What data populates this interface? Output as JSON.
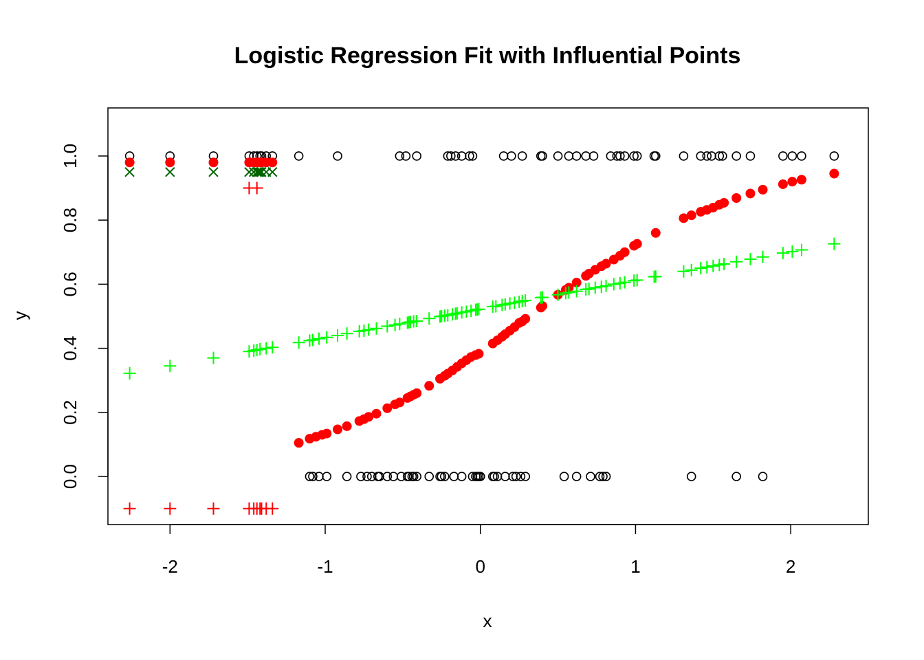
{
  "chart_data": {
    "type": "scatter",
    "title": "Logistic Regression Fit with Influential Points",
    "xlabel": "x",
    "ylabel": "y",
    "xlim": [
      -2.4,
      2.5
    ],
    "ylim": [
      -0.15,
      1.15
    ],
    "x_ticks": [
      -2,
      -1,
      0,
      1,
      2
    ],
    "x_tick_labels": [
      "-2",
      "-1",
      "0",
      "1",
      "2"
    ],
    "y_ticks": [
      0.0,
      0.2,
      0.4,
      0.6,
      0.8,
      1.0
    ],
    "y_tick_labels": [
      "0.0",
      "0.2",
      "0.4",
      "0.6",
      "0.8",
      "1.0"
    ],
    "grid": false,
    "legend": "none",
    "colors": {
      "observed": "#000000",
      "logistic_fit": "#ff0000",
      "linear_fit": "#00ff00",
      "influential_marker": "#006400",
      "influential_offset": "#ff0000"
    },
    "series": [
      {
        "role": "observed",
        "marker": "open-circle",
        "x": [
          -2.26,
          -2.0,
          -1.72,
          -1.49,
          -1.46,
          -1.44,
          -1.42,
          -1.41,
          -1.38,
          -1.34,
          -1.17,
          -0.92,
          -0.52,
          -0.48,
          -0.41,
          -0.21,
          -0.19,
          -0.16,
          -0.12,
          -0.07,
          -0.05,
          0.15,
          0.2,
          0.27,
          0.39,
          0.4,
          0.5,
          0.57,
          0.62,
          0.68,
          0.73,
          0.84,
          0.88,
          0.9,
          0.93,
          0.99,
          1.01,
          1.12,
          1.13,
          1.31,
          1.42,
          1.46,
          1.49,
          1.54,
          1.56,
          1.65,
          1.74,
          1.95,
          2.01,
          2.07,
          2.28,
          -1.1,
          -1.08,
          -1.04,
          -0.99,
          -0.86,
          -0.77,
          -0.73,
          -0.7,
          -0.66,
          -0.65,
          -0.6,
          -0.56,
          -0.51,
          -0.47,
          -0.46,
          -0.44,
          -0.43,
          -0.41,
          -0.33,
          -0.26,
          -0.25,
          -0.23,
          -0.17,
          -0.12,
          -0.05,
          -0.03,
          -0.02,
          -0.01,
          0.0,
          0.08,
          0.09,
          0.11,
          0.16,
          0.21,
          0.23,
          0.26,
          0.29,
          0.54,
          0.62,
          0.71,
          0.77,
          0.79,
          0.81,
          1.36,
          1.65,
          1.82
        ],
        "y": [
          1,
          1,
          1,
          1,
          1,
          1,
          1,
          1,
          1,
          1,
          1,
          1,
          1,
          1,
          1,
          1,
          1,
          1,
          1,
          1,
          1,
          1,
          1,
          1,
          1,
          1,
          1,
          1,
          1,
          1,
          1,
          1,
          1,
          1,
          1,
          1,
          1,
          1,
          1,
          1,
          1,
          1,
          1,
          1,
          1,
          1,
          1,
          1,
          1,
          1,
          1,
          0,
          0,
          0,
          0,
          0,
          0,
          0,
          0,
          0,
          0,
          0,
          0,
          0,
          0,
          0,
          0,
          0,
          0,
          0,
          0,
          0,
          0,
          0,
          0,
          0,
          0,
          0,
          0,
          0,
          0,
          0,
          0,
          0,
          0,
          0,
          0,
          0,
          0,
          0,
          0,
          0,
          0,
          0,
          0,
          0,
          0
        ]
      },
      {
        "role": "logistic_fit",
        "marker": "filled-circle",
        "x": [
          -1.17,
          -1.1,
          -1.06,
          -1.02,
          -0.99,
          -0.92,
          -0.86,
          -0.78,
          -0.75,
          -0.72,
          -0.67,
          -0.6,
          -0.55,
          -0.52,
          -0.47,
          -0.45,
          -0.43,
          -0.41,
          -0.33,
          -0.26,
          -0.23,
          -0.21,
          -0.18,
          -0.15,
          -0.12,
          -0.09,
          -0.06,
          -0.03,
          -0.01,
          0.08,
          0.11,
          0.14,
          0.16,
          0.19,
          0.22,
          0.25,
          0.27,
          0.29,
          0.39,
          0.4,
          0.5,
          0.55,
          0.57,
          0.62,
          0.68,
          0.7,
          0.74,
          0.78,
          0.81,
          0.86,
          0.9,
          0.93,
          0.99,
          1.01,
          1.13,
          1.31,
          1.36,
          1.42,
          1.46,
          1.5,
          1.54,
          1.57,
          1.65,
          1.74,
          1.82,
          1.95,
          2.01,
          2.07,
          2.28
        ],
        "y": [
          0.105,
          0.118,
          0.124,
          0.13,
          0.134,
          0.147,
          0.157,
          0.173,
          0.179,
          0.186,
          0.196,
          0.213,
          0.225,
          0.231,
          0.245,
          0.25,
          0.255,
          0.26,
          0.283,
          0.305,
          0.314,
          0.321,
          0.331,
          0.342,
          0.353,
          0.363,
          0.373,
          0.379,
          0.383,
          0.415,
          0.425,
          0.436,
          0.444,
          0.455,
          0.466,
          0.479,
          0.484,
          0.492,
          0.527,
          0.532,
          0.567,
          0.582,
          0.589,
          0.605,
          0.626,
          0.633,
          0.645,
          0.656,
          0.664,
          0.677,
          0.689,
          0.7,
          0.72,
          0.726,
          0.76,
          0.806,
          0.815,
          0.826,
          0.832,
          0.839,
          0.848,
          0.854,
          0.869,
          0.883,
          0.895,
          0.912,
          0.92,
          0.926,
          0.945
        ]
      },
      {
        "role": "logistic_fit_influential",
        "marker": "filled-circle",
        "x": [
          -2.26,
          -2.0,
          -1.72,
          -1.49,
          -1.46,
          -1.44,
          -1.42,
          -1.41,
          -1.38,
          -1.34
        ],
        "y": [
          0.98,
          0.98,
          0.98,
          0.98,
          0.98,
          0.98,
          0.98,
          0.98,
          0.98,
          0.98
        ]
      },
      {
        "role": "linear_fit",
        "marker": "plus",
        "x": [
          -2.26,
          -2.0,
          -1.72,
          -1.49,
          -1.46,
          -1.44,
          -1.42,
          -1.38,
          -1.34,
          -1.17,
          -1.1,
          -1.08,
          -1.04,
          -0.99,
          -0.92,
          -0.86,
          -0.78,
          -0.75,
          -0.72,
          -0.67,
          -0.6,
          -0.55,
          -0.52,
          -0.47,
          -0.46,
          -0.45,
          -0.43,
          -0.41,
          -0.33,
          -0.26,
          -0.25,
          -0.23,
          -0.21,
          -0.18,
          -0.16,
          -0.15,
          -0.12,
          -0.09,
          -0.06,
          -0.03,
          -0.02,
          -0.01,
          0.08,
          0.1,
          0.14,
          0.16,
          0.19,
          0.22,
          0.25,
          0.27,
          0.29,
          0.39,
          0.4,
          0.5,
          0.55,
          0.57,
          0.62,
          0.68,
          0.7,
          0.74,
          0.78,
          0.81,
          0.86,
          0.9,
          0.93,
          0.99,
          1.01,
          1.12,
          1.13,
          1.31,
          1.36,
          1.42,
          1.46,
          1.5,
          1.54,
          1.57,
          1.65,
          1.74,
          1.82,
          1.95,
          2.01,
          2.07,
          2.28
        ],
        "y": [
          0.322,
          0.345,
          0.37,
          0.39,
          0.393,
          0.395,
          0.397,
          0.4,
          0.403,
          0.418,
          0.424,
          0.426,
          0.43,
          0.434,
          0.44,
          0.446,
          0.453,
          0.455,
          0.458,
          0.462,
          0.469,
          0.473,
          0.476,
          0.48,
          0.481,
          0.482,
          0.484,
          0.485,
          0.493,
          0.499,
          0.5,
          0.502,
          0.503,
          0.506,
          0.508,
          0.509,
          0.512,
          0.514,
          0.517,
          0.52,
          0.521,
          0.522,
          0.53,
          0.531,
          0.535,
          0.537,
          0.54,
          0.542,
          0.545,
          0.547,
          0.549,
          0.558,
          0.559,
          0.567,
          0.572,
          0.574,
          0.578,
          0.584,
          0.585,
          0.589,
          0.592,
          0.595,
          0.6,
          0.603,
          0.606,
          0.611,
          0.613,
          0.623,
          0.624,
          0.64,
          0.644,
          0.65,
          0.653,
          0.657,
          0.66,
          0.663,
          0.67,
          0.678,
          0.685,
          0.697,
          0.702,
          0.707,
          0.726
        ]
      },
      {
        "role": "influential_marker",
        "marker": "cross",
        "x": [
          -2.26,
          -2.0,
          -1.72,
          -1.49,
          -1.46,
          -1.44,
          -1.43,
          -1.42,
          -1.41,
          -1.38,
          -1.34
        ],
        "y": [
          0.95,
          0.95,
          0.95,
          0.95,
          0.95,
          0.95,
          0.95,
          0.95,
          0.95,
          0.95,
          0.95
        ]
      },
      {
        "role": "influential_offset",
        "marker": "plus",
        "x": [
          -2.26,
          -2.0,
          -1.72,
          -1.49,
          -1.46,
          -1.44,
          -1.42,
          -1.41,
          -1.38,
          -1.34,
          -1.49,
          -1.44
        ],
        "y": [
          -0.1,
          -0.1,
          -0.1,
          -0.1,
          -0.1,
          -0.1,
          -0.1,
          -0.1,
          -0.1,
          -0.1,
          0.9,
          0.9
        ]
      }
    ]
  }
}
